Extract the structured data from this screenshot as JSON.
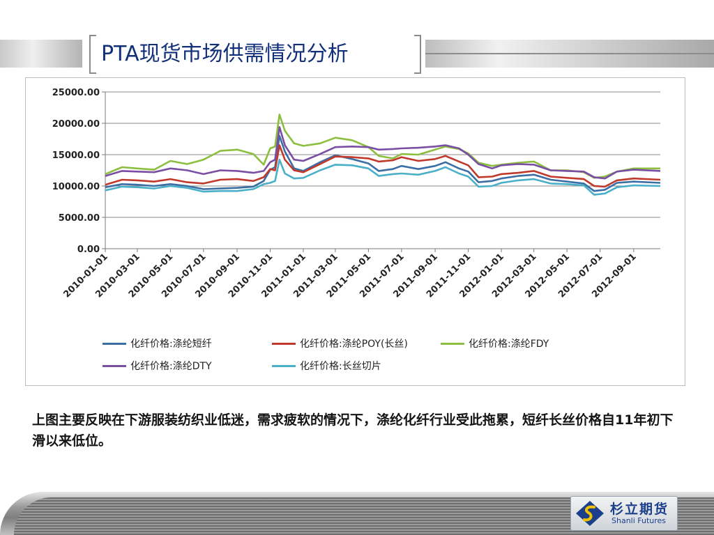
{
  "slide": {
    "title": "PTA现货市场供需情况分析",
    "caption": "上图主要反映在下游服装纺织业低迷，需求疲软的情况下，涤纶化纤行业受此拖累，短纤长丝价格自11年初下滑以来低位。"
  },
  "logo": {
    "name": "杉立期货",
    "subtitle": "Shanli Futures",
    "accent": "#1b3f8a"
  },
  "chart_data": {
    "type": "line",
    "title": "",
    "xlabel": "",
    "ylabel": "",
    "ylim": [
      0,
      25000
    ],
    "yticks": [
      "0.00",
      "5000.00",
      "10000.00",
      "15000.00",
      "20000.00",
      "25000.00"
    ],
    "x_tick_labels": [
      "2010-01-01",
      "2010-03-01",
      "2010-05-01",
      "2010-07-01",
      "2010-09-01",
      "2010-11-01",
      "2011-01-01",
      "2011-03-01",
      "2011-05-01",
      "2011-07-01",
      "2011-09-01",
      "2011-11-01",
      "2012-01-01",
      "2012-03-01",
      "2012-05-01",
      "2012-07-01",
      "2012-09-01"
    ],
    "x_range": [
      "2010-01-01",
      "2012-10-20"
    ],
    "grid": "horizontal",
    "legend_position": "bottom",
    "series": [
      {
        "name": "化纤价格:涤纶短纤",
        "color": "#3b6ea5",
        "points": [
          [
            "2010-01-01",
            9800
          ],
          [
            "2010-02-01",
            10300
          ],
          [
            "2010-03-01",
            10200
          ],
          [
            "2010-04-01",
            10000
          ],
          [
            "2010-05-01",
            10300
          ],
          [
            "2010-06-01",
            10000
          ],
          [
            "2010-07-01",
            9500
          ],
          [
            "2010-08-01",
            9600
          ],
          [
            "2010-09-01",
            9700
          ],
          [
            "2010-10-01",
            9900
          ],
          [
            "2010-10-20",
            10800
          ],
          [
            "2010-11-01",
            12600
          ],
          [
            "2010-11-10",
            13000
          ],
          [
            "2010-11-18",
            18000
          ],
          [
            "2010-11-28",
            15500
          ],
          [
            "2010-12-15",
            12800
          ],
          [
            "2011-01-01",
            12400
          ],
          [
            "2011-02-01",
            13800
          ],
          [
            "2011-03-01",
            14900
          ],
          [
            "2011-04-01",
            14300
          ],
          [
            "2011-05-01",
            13600
          ],
          [
            "2011-05-20",
            12400
          ],
          [
            "2011-06-15",
            12700
          ],
          [
            "2011-07-01",
            13200
          ],
          [
            "2011-08-01",
            12700
          ],
          [
            "2011-09-01",
            13200
          ],
          [
            "2011-09-20",
            13800
          ],
          [
            "2011-10-15",
            12800
          ],
          [
            "2011-11-01",
            12300
          ],
          [
            "2011-11-20",
            10600
          ],
          [
            "2011-12-15",
            10800
          ],
          [
            "2012-01-01",
            11200
          ],
          [
            "2012-02-01",
            11600
          ],
          [
            "2012-03-01",
            11800
          ],
          [
            "2012-04-01",
            11000
          ],
          [
            "2012-05-01",
            10700
          ],
          [
            "2012-06-01",
            10400
          ],
          [
            "2012-06-20",
            9200
          ],
          [
            "2012-07-10",
            9400
          ],
          [
            "2012-08-01",
            10500
          ],
          [
            "2012-09-01",
            10700
          ],
          [
            "2012-10-20",
            10500
          ]
        ]
      },
      {
        "name": "化纤价格:涤纶POY(长丝)",
        "color": "#c0392b",
        "points": [
          [
            "2010-01-01",
            10200
          ],
          [
            "2010-02-01",
            11000
          ],
          [
            "2010-03-01",
            10900
          ],
          [
            "2010-04-01",
            10700
          ],
          [
            "2010-05-01",
            11100
          ],
          [
            "2010-06-01",
            10600
          ],
          [
            "2010-07-01",
            10400
          ],
          [
            "2010-08-01",
            11000
          ],
          [
            "2010-09-01",
            11100
          ],
          [
            "2010-10-01",
            10800
          ],
          [
            "2010-10-20",
            11400
          ],
          [
            "2010-11-01",
            12700
          ],
          [
            "2010-11-10",
            12500
          ],
          [
            "2010-11-18",
            16500
          ],
          [
            "2010-11-28",
            14200
          ],
          [
            "2010-12-15",
            12500
          ],
          [
            "2011-01-01",
            12200
          ],
          [
            "2011-02-01",
            13500
          ],
          [
            "2011-03-01",
            14700
          ],
          [
            "2011-04-01",
            14600
          ],
          [
            "2011-05-01",
            14400
          ],
          [
            "2011-05-20",
            13900
          ],
          [
            "2011-06-15",
            14100
          ],
          [
            "2011-07-01",
            14600
          ],
          [
            "2011-08-01",
            14000
          ],
          [
            "2011-09-01",
            14300
          ],
          [
            "2011-09-20",
            14800
          ],
          [
            "2011-10-15",
            13900
          ],
          [
            "2011-11-01",
            13300
          ],
          [
            "2011-11-20",
            11400
          ],
          [
            "2011-12-15",
            11500
          ],
          [
            "2012-01-01",
            11900
          ],
          [
            "2012-02-01",
            12100
          ],
          [
            "2012-03-01",
            12400
          ],
          [
            "2012-04-01",
            11500
          ],
          [
            "2012-05-01",
            11300
          ],
          [
            "2012-06-01",
            11100
          ],
          [
            "2012-06-20",
            10000
          ],
          [
            "2012-07-10",
            9900
          ],
          [
            "2012-08-01",
            10900
          ],
          [
            "2012-09-01",
            11200
          ],
          [
            "2012-10-20",
            11000
          ]
        ]
      },
      {
        "name": "化纤价格:涤纶FDY",
        "color": "#8cbf3f",
        "points": [
          [
            "2010-01-01",
            11900
          ],
          [
            "2010-02-01",
            13000
          ],
          [
            "2010-03-01",
            12800
          ],
          [
            "2010-04-01",
            12600
          ],
          [
            "2010-05-01",
            14000
          ],
          [
            "2010-06-01",
            13500
          ],
          [
            "2010-07-01",
            14200
          ],
          [
            "2010-08-01",
            15600
          ],
          [
            "2010-09-01",
            15800
          ],
          [
            "2010-10-01",
            15100
          ],
          [
            "2010-10-20",
            13400
          ],
          [
            "2010-11-01",
            16000
          ],
          [
            "2010-11-10",
            16300
          ],
          [
            "2010-11-18",
            21400
          ],
          [
            "2010-11-28",
            18800
          ],
          [
            "2010-12-15",
            16800
          ],
          [
            "2011-01-01",
            16400
          ],
          [
            "2011-02-01",
            16800
          ],
          [
            "2011-03-01",
            17700
          ],
          [
            "2011-04-01",
            17300
          ],
          [
            "2011-05-01",
            16200
          ],
          [
            "2011-05-20",
            14800
          ],
          [
            "2011-06-15",
            14400
          ],
          [
            "2011-07-01",
            15100
          ],
          [
            "2011-08-01",
            15000
          ],
          [
            "2011-09-01",
            15800
          ],
          [
            "2011-09-20",
            16300
          ],
          [
            "2011-10-15",
            15900
          ],
          [
            "2011-11-01",
            15200
          ],
          [
            "2011-11-20",
            13700
          ],
          [
            "2011-12-15",
            13200
          ],
          [
            "2012-01-01",
            13400
          ],
          [
            "2012-02-01",
            13700
          ],
          [
            "2012-03-01",
            13900
          ],
          [
            "2012-04-01",
            12500
          ],
          [
            "2012-05-01",
            12500
          ],
          [
            "2012-06-01",
            12200
          ],
          [
            "2012-06-20",
            11300
          ],
          [
            "2012-07-10",
            11500
          ],
          [
            "2012-08-01",
            12300
          ],
          [
            "2012-09-01",
            12800
          ],
          [
            "2012-10-20",
            12800
          ]
        ]
      },
      {
        "name": "化纤价格:涤纶DTY",
        "color": "#7a4ea3",
        "points": [
          [
            "2010-01-01",
            11600
          ],
          [
            "2010-02-01",
            12400
          ],
          [
            "2010-03-01",
            12300
          ],
          [
            "2010-04-01",
            12200
          ],
          [
            "2010-05-01",
            12800
          ],
          [
            "2010-06-01",
            12500
          ],
          [
            "2010-07-01",
            11900
          ],
          [
            "2010-08-01",
            12500
          ],
          [
            "2010-09-01",
            12400
          ],
          [
            "2010-10-01",
            12100
          ],
          [
            "2010-10-20",
            12400
          ],
          [
            "2010-11-01",
            13800
          ],
          [
            "2010-11-10",
            14200
          ],
          [
            "2010-11-18",
            19400
          ],
          [
            "2010-11-28",
            16500
          ],
          [
            "2010-12-15",
            14200
          ],
          [
            "2011-01-01",
            14000
          ],
          [
            "2011-02-01",
            15100
          ],
          [
            "2011-03-01",
            16200
          ],
          [
            "2011-04-01",
            16300
          ],
          [
            "2011-05-01",
            16200
          ],
          [
            "2011-05-20",
            15800
          ],
          [
            "2011-06-15",
            15900
          ],
          [
            "2011-07-01",
            16000
          ],
          [
            "2011-08-01",
            16100
          ],
          [
            "2011-09-01",
            16300
          ],
          [
            "2011-09-20",
            16500
          ],
          [
            "2011-10-15",
            16000
          ],
          [
            "2011-11-01",
            15000
          ],
          [
            "2011-11-20",
            13500
          ],
          [
            "2011-12-15",
            12800
          ],
          [
            "2012-01-01",
            13300
          ],
          [
            "2012-02-01",
            13500
          ],
          [
            "2012-03-01",
            13400
          ],
          [
            "2012-04-01",
            12500
          ],
          [
            "2012-05-01",
            12400
          ],
          [
            "2012-06-01",
            12300
          ],
          [
            "2012-06-20",
            11400
          ],
          [
            "2012-07-10",
            11200
          ],
          [
            "2012-08-01",
            12300
          ],
          [
            "2012-09-01",
            12600
          ],
          [
            "2012-10-20",
            12400
          ]
        ]
      },
      {
        "name": "化纤价格:长丝切片",
        "color": "#4aafc8",
        "points": [
          [
            "2010-01-01",
            9300
          ],
          [
            "2010-02-01",
            9900
          ],
          [
            "2010-03-01",
            9800
          ],
          [
            "2010-04-01",
            9600
          ],
          [
            "2010-05-01",
            10000
          ],
          [
            "2010-06-01",
            9700
          ],
          [
            "2010-07-01",
            9100
          ],
          [
            "2010-08-01",
            9200
          ],
          [
            "2010-09-01",
            9200
          ],
          [
            "2010-10-01",
            9500
          ],
          [
            "2010-10-20",
            10300
          ],
          [
            "2010-11-01",
            10500
          ],
          [
            "2010-11-10",
            10800
          ],
          [
            "2010-11-18",
            14200
          ],
          [
            "2010-11-28",
            12000
          ],
          [
            "2010-12-15",
            11200
          ],
          [
            "2011-01-01",
            11300
          ],
          [
            "2011-02-01",
            12500
          ],
          [
            "2011-03-01",
            13400
          ],
          [
            "2011-04-01",
            13300
          ],
          [
            "2011-05-01",
            12800
          ],
          [
            "2011-05-20",
            11600
          ],
          [
            "2011-06-15",
            11900
          ],
          [
            "2011-07-01",
            12000
          ],
          [
            "2011-08-01",
            11800
          ],
          [
            "2011-09-01",
            12400
          ],
          [
            "2011-09-20",
            13000
          ],
          [
            "2011-10-15",
            12000
          ],
          [
            "2011-11-01",
            11500
          ],
          [
            "2011-11-20",
            9900
          ],
          [
            "2011-12-15",
            10000
          ],
          [
            "2012-01-01",
            10500
          ],
          [
            "2012-02-01",
            10900
          ],
          [
            "2012-03-01",
            11100
          ],
          [
            "2012-04-01",
            10400
          ],
          [
            "2012-05-01",
            10300
          ],
          [
            "2012-06-01",
            10100
          ],
          [
            "2012-06-20",
            8600
          ],
          [
            "2012-07-10",
            8800
          ],
          [
            "2012-08-01",
            9800
          ],
          [
            "2012-09-01",
            10100
          ],
          [
            "2012-10-20",
            10000
          ]
        ]
      }
    ]
  }
}
